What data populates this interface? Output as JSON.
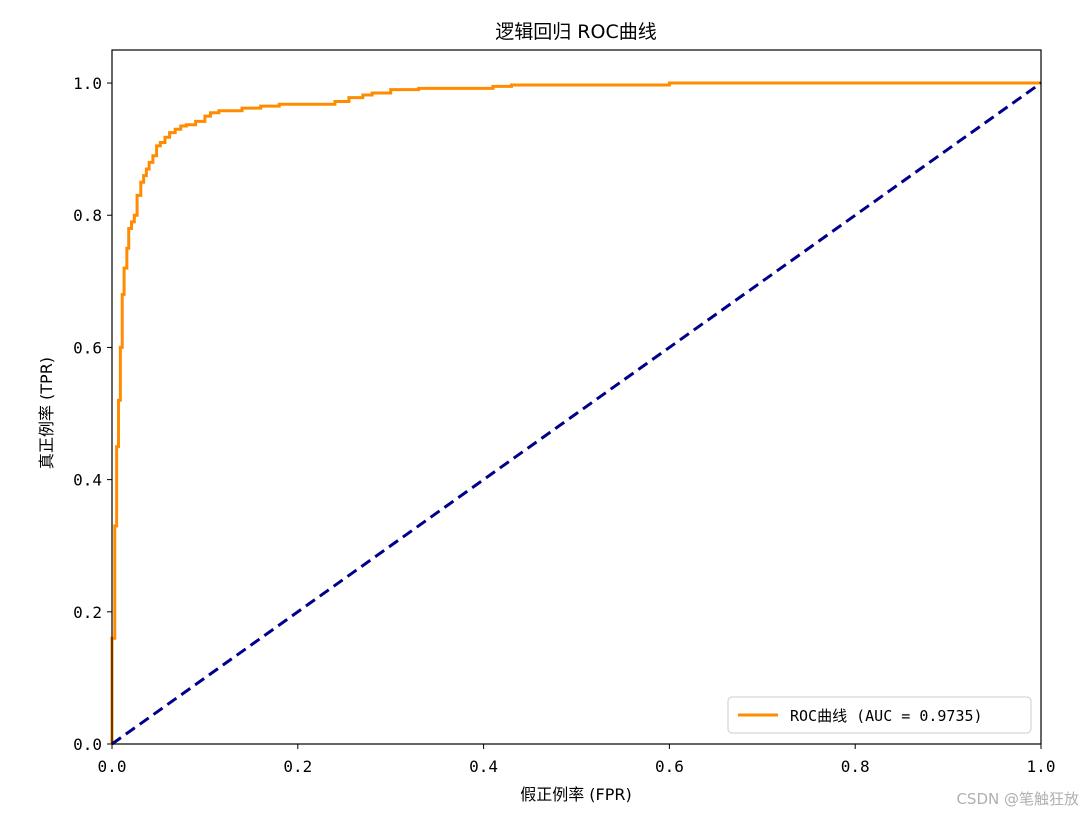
{
  "chart_data": {
    "type": "line",
    "title": "逻辑回归 ROC曲线",
    "xlabel": "假正例率 (FPR)",
    "ylabel": "真正例率 (TPR)",
    "xlim": [
      0.0,
      1.0
    ],
    "ylim": [
      0.0,
      1.05
    ],
    "x_ticks": [
      "0.0",
      "0.2",
      "0.4",
      "0.6",
      "0.8",
      "1.0"
    ],
    "y_ticks": [
      "0.0",
      "0.2",
      "0.4",
      "0.6",
      "0.8",
      "1.0"
    ],
    "grid": false,
    "legend_position": "lower right",
    "series": [
      {
        "name": "ROC曲线 (AUC = 0.9735)",
        "color": "#ff8c00",
        "style": "solid",
        "x": [
          0,
          0,
          0.003,
          0.003,
          0.005,
          0.005,
          0.007,
          0.007,
          0.009,
          0.009,
          0.011,
          0.011,
          0.013,
          0.013,
          0.016,
          0.016,
          0.018,
          0.018,
          0.021,
          0.021,
          0.024,
          0.024,
          0.027,
          0.027,
          0.031,
          0.031,
          0.034,
          0.034,
          0.037,
          0.037,
          0.04,
          0.04,
          0.044,
          0.044,
          0.048,
          0.048,
          0.052,
          0.052,
          0.057,
          0.057,
          0.062,
          0.062,
          0.068,
          0.068,
          0.074,
          0.074,
          0.08,
          0.08,
          0.09,
          0.09,
          0.1,
          0.1,
          0.106,
          0.106,
          0.115,
          0.115,
          0.14,
          0.14,
          0.16,
          0.16,
          0.18,
          0.18,
          0.24,
          0.24,
          0.255,
          0.255,
          0.27,
          0.27,
          0.28,
          0.28,
          0.3,
          0.3,
          0.33,
          0.33,
          0.41,
          0.41,
          0.43,
          0.43,
          0.6,
          0.6,
          0.635,
          0.635,
          1.0
        ],
        "y": [
          0,
          0.16,
          0.16,
          0.33,
          0.33,
          0.45,
          0.45,
          0.52,
          0.52,
          0.6,
          0.6,
          0.68,
          0.68,
          0.72,
          0.72,
          0.75,
          0.75,
          0.78,
          0.78,
          0.79,
          0.79,
          0.8,
          0.8,
          0.83,
          0.83,
          0.85,
          0.85,
          0.86,
          0.86,
          0.87,
          0.87,
          0.88,
          0.88,
          0.89,
          0.89,
          0.905,
          0.905,
          0.91,
          0.91,
          0.918,
          0.918,
          0.925,
          0.925,
          0.93,
          0.93,
          0.935,
          0.935,
          0.937,
          0.937,
          0.942,
          0.942,
          0.95,
          0.95,
          0.955,
          0.955,
          0.958,
          0.958,
          0.962,
          0.962,
          0.965,
          0.965,
          0.968,
          0.968,
          0.972,
          0.972,
          0.978,
          0.978,
          0.982,
          0.982,
          0.985,
          0.985,
          0.99,
          0.99,
          0.992,
          0.992,
          0.995,
          0.995,
          0.997,
          0.997,
          1.0,
          1.0,
          1.0,
          1.0
        ]
      },
      {
        "name": "",
        "color": "#00008b",
        "style": "dashed",
        "x": [
          0,
          1
        ],
        "y": [
          0,
          1
        ]
      }
    ]
  },
  "watermark": "CSDN @笔触狂放"
}
